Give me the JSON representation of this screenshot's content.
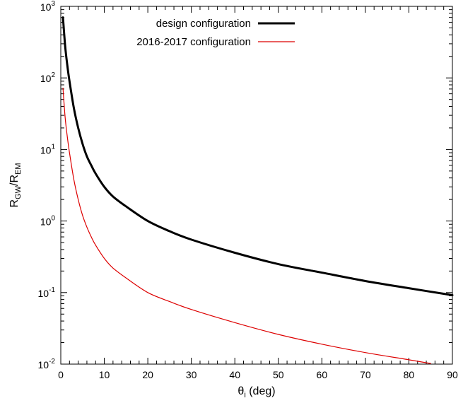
{
  "chart_data": {
    "type": "line",
    "xlabel": {
      "base": "θ",
      "sub": "i",
      "rest": " (deg)"
    },
    "ylabel": {
      "a": "R",
      "a_sub": "GW",
      "slash": "/R",
      "b_sub": "EM"
    },
    "xlim": [
      0,
      90
    ],
    "ylim": [
      0.01,
      1000
    ],
    "yscale": "log",
    "grid": false,
    "legend_position": "top-right",
    "x_ticks": [
      0,
      10,
      20,
      30,
      40,
      50,
      60,
      70,
      80,
      90
    ],
    "y_ticks": [
      {
        "base": "10",
        "exp": "-2",
        "value": 0.01
      },
      {
        "base": "10",
        "exp": "-1",
        "value": 0.1
      },
      {
        "base": "10",
        "exp": "0",
        "value": 1
      },
      {
        "base": "10",
        "exp": "1",
        "value": 10
      },
      {
        "base": "10",
        "exp": "2",
        "value": 100
      },
      {
        "base": "10",
        "exp": "3",
        "value": 1000
      }
    ],
    "series": [
      {
        "name": "design configuration",
        "color": "#000000",
        "style": "thick",
        "x": [
          0.5,
          1,
          1.5,
          2,
          3,
          4,
          5,
          6,
          7,
          8,
          10,
          12,
          15,
          20,
          25,
          30,
          40,
          50,
          60,
          70,
          80,
          90
        ],
        "y": [
          700,
          280,
          150,
          90,
          38,
          20,
          12,
          8,
          6,
          4.6,
          3.0,
          2.2,
          1.6,
          1.0,
          0.72,
          0.55,
          0.36,
          0.25,
          0.19,
          0.145,
          0.115,
          0.092
        ]
      },
      {
        "name": "2016-2017 configuration",
        "color": "#dd0000",
        "style": "thin",
        "x": [
          0.5,
          1,
          1.5,
          2,
          3,
          4,
          5,
          6,
          7,
          8,
          10,
          12,
          15,
          20,
          25,
          30,
          40,
          50,
          60,
          70,
          80,
          85
        ],
        "y": [
          72,
          28,
          15,
          9,
          3.8,
          2.0,
          1.2,
          0.82,
          0.6,
          0.46,
          0.3,
          0.22,
          0.16,
          0.1,
          0.075,
          0.058,
          0.038,
          0.026,
          0.019,
          0.0145,
          0.0115,
          0.0102
        ]
      }
    ]
  }
}
